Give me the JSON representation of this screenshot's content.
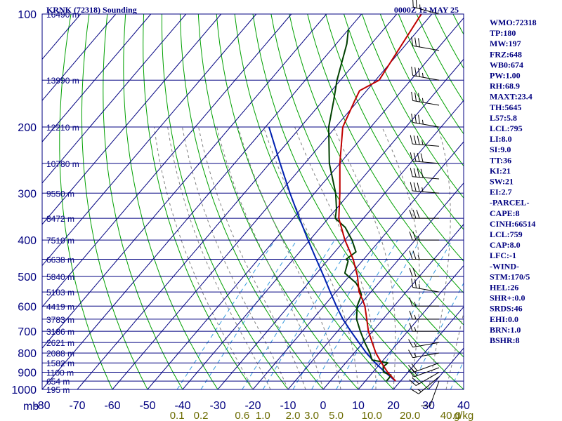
{
  "header": {
    "title": "KRNK (72318) Sounding",
    "time": "0000Z 12 MAY 25"
  },
  "colors": {
    "grid": "#000080",
    "isotherm": "#000080",
    "dry_adiabat": "#00a000",
    "moist_adiabat": "#808080",
    "mixing_ratio": "#3399dd",
    "temperature": "#c00000",
    "dewpoint": "#004000",
    "parcel": "#0020b0",
    "wind_barb": "#000000"
  },
  "axes": {
    "pressure_unit_label": "mb",
    "pressure_ticks": [
      100,
      200,
      300,
      400,
      500,
      600,
      700,
      800,
      900,
      1000
    ],
    "temperature_ticks": [
      -80,
      -70,
      -60,
      -50,
      -40,
      -30,
      -20,
      -10,
      0,
      10,
      20,
      30,
      40
    ],
    "mixing_ratio_ticks": [
      "0.1",
      "0.2",
      "0.6",
      "1.0",
      "2.0",
      "3.0",
      "5.0",
      "10.0",
      "20.0",
      "40.0"
    ],
    "mixing_ratio_unit": "g/kg"
  },
  "height_labels": [
    {
      "p": 100,
      "text": "16490 m"
    },
    {
      "p": 150,
      "text": "13990 m"
    },
    {
      "p": 200,
      "text": "12210 m"
    },
    {
      "p": 250,
      "text": "10780 m"
    },
    {
      "p": 300,
      "text": "9550 m"
    },
    {
      "p": 350,
      "text": "8472 m"
    },
    {
      "p": 400,
      "text": "7510 m"
    },
    {
      "p": 450,
      "text": "6638 m"
    },
    {
      "p": 500,
      "text": "5840 m"
    },
    {
      "p": 550,
      "text": "5103 m"
    },
    {
      "p": 600,
      "text": "4419 m"
    },
    {
      "p": 650,
      "text": "3783 m"
    },
    {
      "p": 700,
      "text": "3186 m"
    },
    {
      "p": 750,
      "text": "2621 m"
    },
    {
      "p": 800,
      "text": "2088 m"
    },
    {
      "p": 850,
      "text": "1582 m"
    },
    {
      "p": 900,
      "text": "1100 m"
    },
    {
      "p": 950,
      "text": "654 m"
    },
    {
      "p": 1000,
      "text": "195 m"
    }
  ],
  "indices": [
    "WMO:72318",
    "TP:180",
    "MW:197",
    "FRZ:648",
    "WB0:674",
    "PW:1.00",
    "RH:68.9",
    "MAXT:23.4",
    "TH:5645",
    "L57:5.8",
    "LCL:795",
    "LI:8.0",
    "SI:9.0",
    "TT:36",
    "KI:21",
    "SW:21",
    "EI:2.7",
    "-PARCEL-",
    "CAPE:8",
    "CINH:66514",
    "LCL:759",
    "CAP:8.0",
    "LFC:-1",
    "-WIND-",
    "STM:170/5",
    "HEL:26",
    "SHR+:0.0",
    "SRDS:46",
    "EHI:0.0",
    "BRN:1.0",
    "BSHR:8"
  ],
  "chart_data": {
    "type": "skew-t log-p sounding",
    "title": "KRNK (72318) Sounding",
    "valid_time": "0000Z 12 MAY 25",
    "xlabel": "",
    "ylabel": "mb",
    "pressure_range": [
      100,
      1000
    ],
    "pressure_scale": "log",
    "temperature_range_at_base": [
      -80,
      40
    ],
    "series": [
      {
        "name": "Temperature",
        "points": [
          [
            950,
            18.6
          ],
          [
            900,
            14.2
          ],
          [
            850,
            10.2
          ],
          [
            800,
            6.2
          ],
          [
            750,
            2.6
          ],
          [
            700,
            -1.2
          ],
          [
            650,
            -4.6
          ],
          [
            600,
            -8.3
          ],
          [
            580,
            -10.2
          ],
          [
            550,
            -13.4
          ],
          [
            500,
            -17.6
          ],
          [
            450,
            -23.0
          ],
          [
            400,
            -30.0
          ],
          [
            350,
            -37.0
          ],
          [
            300,
            -42.8
          ],
          [
            250,
            -50.0
          ],
          [
            200,
            -58.0
          ],
          [
            170,
            -61.0
          ],
          [
            160,
            -62.0
          ],
          [
            150,
            -59.0
          ],
          [
            100,
            -63.0
          ]
        ]
      },
      {
        "name": "Dewpoint",
        "points": [
          [
            950,
            16.0
          ],
          [
            930,
            16.0
          ],
          [
            915,
            15.8
          ],
          [
            900,
            13.0
          ],
          [
            870,
            11.6
          ],
          [
            850,
            12.0
          ],
          [
            835,
            6.8
          ],
          [
            800,
            4.5
          ],
          [
            750,
            0.5
          ],
          [
            700,
            -3.5
          ],
          [
            650,
            -7.5
          ],
          [
            600,
            -10.5
          ],
          [
            560,
            -12.0
          ],
          [
            540,
            -14.0
          ],
          [
            520,
            -16.5
          ],
          [
            490,
            -22.0
          ],
          [
            455,
            -24.0
          ],
          [
            450,
            -25.0
          ],
          [
            430,
            -24.0
          ],
          [
            400,
            -28.0
          ],
          [
            370,
            -33.0
          ],
          [
            350,
            -38.0
          ],
          [
            330,
            -40.0
          ],
          [
            300,
            -44.0
          ],
          [
            250,
            -53.0
          ],
          [
            200,
            -62.0
          ],
          [
            170,
            -67.0
          ],
          [
            150,
            -71.0
          ],
          [
            120,
            -77.0
          ],
          [
            110,
            -80.0
          ]
        ]
      },
      {
        "name": "Parcel",
        "points": [
          [
            950,
            18.6
          ],
          [
            900,
            13.5
          ],
          [
            850,
            8.4
          ],
          [
            800,
            3.5
          ],
          [
            750,
            -1.2
          ],
          [
            700,
            -6.2
          ],
          [
            650,
            -11.4
          ],
          [
            600,
            -16.4
          ],
          [
            550,
            -21.6
          ],
          [
            500,
            -27.2
          ],
          [
            450,
            -33.5
          ],
          [
            400,
            -40.5
          ],
          [
            350,
            -48.2
          ],
          [
            300,
            -57.0
          ],
          [
            250,
            -67.0
          ],
          [
            200,
            -79.0
          ]
        ]
      }
    ],
    "wind_profile": [
      {
        "p": 950,
        "dir": 200,
        "spd": 10
      },
      {
        "p": 925,
        "dir": 230,
        "spd": 15
      },
      {
        "p": 900,
        "dir": 240,
        "spd": 20
      },
      {
        "p": 875,
        "dir": 250,
        "spd": 20
      },
      {
        "p": 850,
        "dir": 250,
        "spd": 20
      },
      {
        "p": 800,
        "dir": 260,
        "spd": 15
      },
      {
        "p": 750,
        "dir": 260,
        "spd": 15
      },
      {
        "p": 700,
        "dir": 270,
        "spd": 15
      },
      {
        "p": 650,
        "dir": 270,
        "spd": 15
      },
      {
        "p": 600,
        "dir": 270,
        "spd": 15
      },
      {
        "p": 550,
        "dir": 280,
        "spd": 25
      },
      {
        "p": 500,
        "dir": 270,
        "spd": 20
      },
      {
        "p": 450,
        "dir": 270,
        "spd": 25
      },
      {
        "p": 400,
        "dir": 270,
        "spd": 25
      },
      {
        "p": 350,
        "dir": 270,
        "spd": 30
      },
      {
        "p": 300,
        "dir": 275,
        "spd": 35
      },
      {
        "p": 275,
        "dir": 275,
        "spd": 40
      },
      {
        "p": 250,
        "dir": 275,
        "spd": 40
      },
      {
        "p": 225,
        "dir": 275,
        "spd": 35
      },
      {
        "p": 200,
        "dir": 280,
        "spd": 35
      },
      {
        "p": 175,
        "dir": 280,
        "spd": 35
      },
      {
        "p": 150,
        "dir": 280,
        "spd": 35
      },
      {
        "p": 125,
        "dir": 280,
        "spd": 30
      },
      {
        "p": 100,
        "dir": 285,
        "spd": 25
      }
    ]
  }
}
